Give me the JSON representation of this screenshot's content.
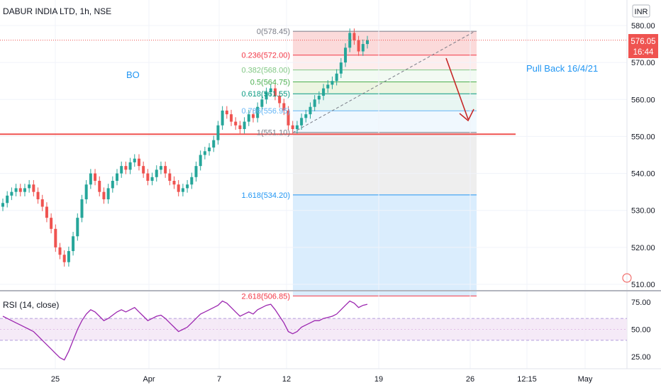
{
  "header": {
    "symbol_title": "DABUR INDIA LTD, 1h, NSE",
    "currency": "INR"
  },
  "price_badge": {
    "price": "576.05",
    "countdown": "16:44",
    "color": "#ef5350"
  },
  "annotations": {
    "bo": "BO",
    "pullback": "Pull Back 16/4/21"
  },
  "rsi": {
    "label": "RSI (14, close)"
  },
  "colors": {
    "up": "#26a69a",
    "down": "#ef5350",
    "line": "#ef5350",
    "rsi": "#9c27b0",
    "annot": "#2196f3",
    "arrow": "#c62828"
  },
  "chart_data": [
    {
      "type": "candlestick",
      "ylim": [
        509,
        584
      ],
      "y_ticks": [
        510,
        520,
        530,
        540,
        550,
        560,
        570,
        580
      ],
      "y_tick_labels": [
        "510.00",
        "520.00",
        "530.00",
        "540.00",
        "550.00",
        "560.00",
        "570.00",
        "580.00"
      ],
      "x_tick_labels": [
        "25",
        "Apr",
        "7",
        "12",
        "19",
        "26",
        "12:15",
        "May"
      ],
      "horizontal_line": 550.6,
      "fibonacci": [
        {
          "level": "0",
          "label": "0(578.45)",
          "price": 578.45,
          "color": "#787b86"
        },
        {
          "level": "0.236",
          "label": "0.236(572.00)",
          "price": 572.0,
          "color": "#f23645"
        },
        {
          "level": "0.382",
          "label": "0.382(568.00)",
          "price": 568.0,
          "color": "#81c784"
        },
        {
          "level": "0.5",
          "label": "0.5(564.75)",
          "price": 564.75,
          "color": "#4caf50"
        },
        {
          "level": "0.618",
          "label": "0.618(561.55)",
          "price": 561.55,
          "color": "#089981"
        },
        {
          "level": "0.786",
          "label": "0.786(556.95)",
          "price": 556.95,
          "color": "#64b5f6"
        },
        {
          "level": "1",
          "label": "1(551.10)",
          "price": 551.1,
          "color": "#787b86"
        },
        {
          "level": "1.618",
          "label": "1.618(534.20)",
          "price": 534.2,
          "color": "#2196f3"
        },
        {
          "level": "2.618",
          "label": "2.618(506.85)",
          "price": 506.85,
          "color": "#f23645"
        }
      ],
      "closes": [
        532,
        534,
        535,
        536,
        535,
        536,
        537,
        535,
        533,
        531,
        528,
        525,
        520,
        518,
        516,
        519,
        523,
        528,
        533,
        537,
        540,
        538,
        535,
        533,
        536,
        538,
        540,
        542,
        541,
        543,
        544,
        542,
        540,
        538,
        539,
        541,
        542,
        540,
        538,
        537,
        535,
        536,
        537,
        539,
        542,
        545,
        546,
        547,
        549,
        553,
        557,
        556,
        554,
        553,
        552,
        554,
        556,
        555,
        558,
        560,
        562,
        563,
        561,
        559,
        557,
        553,
        552,
        553,
        555,
        556,
        558,
        560,
        561,
        563,
        564,
        565,
        567,
        570,
        574,
        578,
        576,
        573,
        575,
        576
      ]
    },
    {
      "type": "line",
      "name": "RSI (14, close)",
      "ylim": [
        17,
        82
      ],
      "y_ticks": [
        25,
        50,
        75
      ],
      "y_tick_labels": [
        "25.00",
        "50.00",
        "75.00"
      ],
      "band": [
        40,
        60
      ],
      "values": [
        62,
        60,
        58,
        56,
        54,
        52,
        50,
        48,
        44,
        40,
        36,
        32,
        28,
        24,
        22,
        30,
        40,
        50,
        58,
        64,
        68,
        66,
        62,
        58,
        60,
        63,
        66,
        68,
        66,
        68,
        70,
        66,
        62,
        58,
        60,
        62,
        63,
        60,
        56,
        52,
        48,
        50,
        52,
        56,
        60,
        64,
        66,
        68,
        70,
        72,
        76,
        74,
        70,
        66,
        62,
        64,
        66,
        64,
        68,
        70,
        72,
        73,
        68,
        62,
        56,
        48,
        46,
        48,
        52,
        54,
        56,
        58,
        58,
        60,
        61,
        62,
        64,
        68,
        72,
        76,
        74,
        70,
        72,
        73
      ]
    }
  ]
}
